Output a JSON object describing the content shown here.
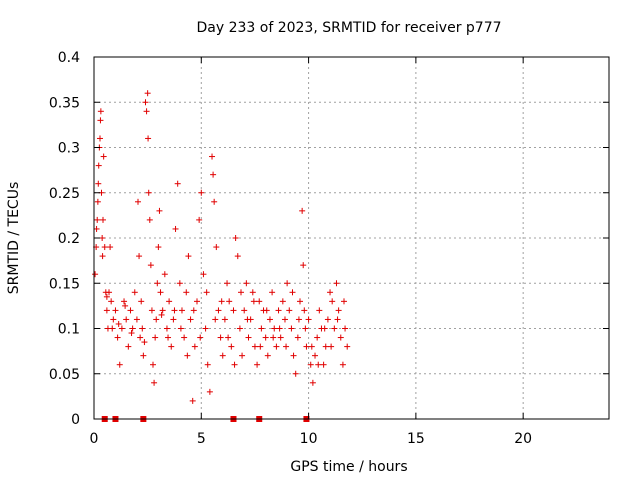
{
  "chart_data": {
    "type": "scatter",
    "title": "Day 233 of 2023, SRMTID for receiver p777",
    "xlabel": "GPS time / hours",
    "ylabel": "SRMTID / TECUs",
    "xlim": [
      0,
      24
    ],
    "ylim": [
      0,
      0.4
    ],
    "xticks": [
      0,
      5,
      10,
      15,
      20
    ],
    "yticks": [
      0,
      0.05,
      0.1,
      0.15,
      0.2,
      0.25,
      0.3,
      0.35,
      0.4
    ],
    "xtick_labels": [
      "0",
      "5",
      "10",
      "15",
      "20"
    ],
    "ytick_labels": [
      "0",
      "0.05",
      "0.1",
      "0.15",
      "0.2",
      "0.25",
      "0.3",
      "0.35",
      "0.4"
    ],
    "grid": true,
    "marker": "+",
    "color": "#e00000",
    "series": [
      {
        "name": "SRMTID",
        "points": [
          [
            0.05,
            0.16
          ],
          [
            0.1,
            0.19
          ],
          [
            0.12,
            0.21
          ],
          [
            0.15,
            0.22
          ],
          [
            0.18,
            0.24
          ],
          [
            0.2,
            0.26
          ],
          [
            0.22,
            0.28
          ],
          [
            0.25,
            0.3
          ],
          [
            0.28,
            0.31
          ],
          [
            0.3,
            0.33
          ],
          [
            0.32,
            0.34
          ],
          [
            0.35,
            0.25
          ],
          [
            0.38,
            0.2
          ],
          [
            0.4,
            0.18
          ],
          [
            0.42,
            0.22
          ],
          [
            0.45,
            0.29
          ],
          [
            0.5,
            0.19
          ],
          [
            0.55,
            0.14
          ],
          [
            0.6,
            0.12
          ],
          [
            0.65,
            0.1
          ],
          [
            0.7,
            0.14
          ],
          [
            0.75,
            0.19
          ],
          [
            0.8,
            0.13
          ],
          [
            0.85,
            0.1
          ],
          [
            0.9,
            0.11
          ],
          [
            1.0,
            0.12
          ],
          [
            1.1,
            0.09
          ],
          [
            1.2,
            0.06
          ],
          [
            1.3,
            0.1
          ],
          [
            1.4,
            0.13
          ],
          [
            1.5,
            0.11
          ],
          [
            1.6,
            0.08
          ],
          [
            1.7,
            0.12
          ],
          [
            1.8,
            0.1
          ],
          [
            1.9,
            0.14
          ],
          [
            2.0,
            0.11
          ],
          [
            2.05,
            0.24
          ],
          [
            2.1,
            0.18
          ],
          [
            2.15,
            0.09
          ],
          [
            2.2,
            0.13
          ],
          [
            2.25,
            0.1
          ],
          [
            2.3,
            0.07
          ],
          [
            2.4,
            0.35
          ],
          [
            2.45,
            0.34
          ],
          [
            2.5,
            0.36
          ],
          [
            2.52,
            0.31
          ],
          [
            2.55,
            0.25
          ],
          [
            2.6,
            0.22
          ],
          [
            2.65,
            0.17
          ],
          [
            2.7,
            0.12
          ],
          [
            2.75,
            0.06
          ],
          [
            2.8,
            0.04
          ],
          [
            2.85,
            0.09
          ],
          [
            2.9,
            0.11
          ],
          [
            2.95,
            0.15
          ],
          [
            3.0,
            0.19
          ],
          [
            3.05,
            0.23
          ],
          [
            3.1,
            0.14
          ],
          [
            3.2,
            0.12
          ],
          [
            3.3,
            0.16
          ],
          [
            3.4,
            0.1
          ],
          [
            3.5,
            0.13
          ],
          [
            3.6,
            0.08
          ],
          [
            3.7,
            0.11
          ],
          [
            3.8,
            0.21
          ],
          [
            3.9,
            0.26
          ],
          [
            4.0,
            0.15
          ],
          [
            4.1,
            0.12
          ],
          [
            4.2,
            0.09
          ],
          [
            4.3,
            0.14
          ],
          [
            4.4,
            0.18
          ],
          [
            4.5,
            0.11
          ],
          [
            4.6,
            0.02
          ],
          [
            4.7,
            0.08
          ],
          [
            4.8,
            0.13
          ],
          [
            4.9,
            0.22
          ],
          [
            5.0,
            0.25
          ],
          [
            5.1,
            0.16
          ],
          [
            5.2,
            0.1
          ],
          [
            5.3,
            0.06
          ],
          [
            5.4,
            0.03
          ],
          [
            5.5,
            0.29
          ],
          [
            5.55,
            0.27
          ],
          [
            5.6,
            0.24
          ],
          [
            5.7,
            0.19
          ],
          [
            5.8,
            0.12
          ],
          [
            5.9,
            0.09
          ],
          [
            6.0,
            0.07
          ],
          [
            6.1,
            0.11
          ],
          [
            6.2,
            0.15
          ],
          [
            6.3,
            0.13
          ],
          [
            6.4,
            0.08
          ],
          [
            6.5,
            0.12
          ],
          [
            6.6,
            0.2
          ],
          [
            6.7,
            0.18
          ],
          [
            6.8,
            0.1
          ],
          [
            6.9,
            0.07
          ],
          [
            7.0,
            0.12
          ],
          [
            7.1,
            0.15
          ],
          [
            7.2,
            0.09
          ],
          [
            7.3,
            0.11
          ],
          [
            7.4,
            0.14
          ],
          [
            7.5,
            0.08
          ],
          [
            7.6,
            0.06
          ],
          [
            7.7,
            0.13
          ],
          [
            7.8,
            0.1
          ],
          [
            7.9,
            0.12
          ],
          [
            8.0,
            0.09
          ],
          [
            8.1,
            0.07
          ],
          [
            8.2,
            0.11
          ],
          [
            8.3,
            0.14
          ],
          [
            8.4,
            0.1
          ],
          [
            8.5,
            0.08
          ],
          [
            8.6,
            0.12
          ],
          [
            8.7,
            0.09
          ],
          [
            8.8,
            0.13
          ],
          [
            8.9,
            0.11
          ],
          [
            9.0,
            0.15
          ],
          [
            9.1,
            0.12
          ],
          [
            9.2,
            0.1
          ],
          [
            9.3,
            0.07
          ],
          [
            9.4,
            0.05
          ],
          [
            9.5,
            0.09
          ],
          [
            9.6,
            0.13
          ],
          [
            9.7,
            0.23
          ],
          [
            9.75,
            0.17
          ],
          [
            9.8,
            0.12
          ],
          [
            9.9,
            0.08
          ],
          [
            10.0,
            0.11
          ],
          [
            10.1,
            0.06
          ],
          [
            10.2,
            0.04
          ],
          [
            10.3,
            0.07
          ],
          [
            10.4,
            0.09
          ],
          [
            10.5,
            0.12
          ],
          [
            10.6,
            0.1
          ],
          [
            10.7,
            0.06
          ],
          [
            10.8,
            0.08
          ],
          [
            10.9,
            0.11
          ],
          [
            11.0,
            0.14
          ],
          [
            11.1,
            0.13
          ],
          [
            11.2,
            0.1
          ],
          [
            11.3,
            0.15
          ],
          [
            11.4,
            0.12
          ],
          [
            11.5,
            0.09
          ],
          [
            11.6,
            0.06
          ],
          [
            11.7,
            0.1
          ],
          [
            11.8,
            0.08
          ],
          [
            0.6,
            0.135
          ],
          [
            1.15,
            0.105
          ],
          [
            1.45,
            0.125
          ],
          [
            1.75,
            0.095
          ],
          [
            2.35,
            0.085
          ],
          [
            3.15,
            0.115
          ],
          [
            3.45,
            0.09
          ],
          [
            3.75,
            0.12
          ],
          [
            4.05,
            0.1
          ],
          [
            4.35,
            0.07
          ],
          [
            4.65,
            0.12
          ],
          [
            4.95,
            0.09
          ],
          [
            5.25,
            0.14
          ],
          [
            5.65,
            0.11
          ],
          [
            5.95,
            0.13
          ],
          [
            6.25,
            0.09
          ],
          [
            6.55,
            0.06
          ],
          [
            6.85,
            0.14
          ],
          [
            7.15,
            0.11
          ],
          [
            7.45,
            0.13
          ],
          [
            7.75,
            0.08
          ],
          [
            8.05,
            0.12
          ],
          [
            8.35,
            0.09
          ],
          [
            8.65,
            0.1
          ],
          [
            8.95,
            0.08
          ],
          [
            9.25,
            0.14
          ],
          [
            9.55,
            0.11
          ],
          [
            9.85,
            0.1
          ],
          [
            10.15,
            0.08
          ],
          [
            10.45,
            0.06
          ],
          [
            10.75,
            0.1
          ],
          [
            11.05,
            0.08
          ],
          [
            11.35,
            0.11
          ],
          [
            11.65,
            0.13
          ]
        ]
      }
    ],
    "baseline_markers_x": [
      0.5,
      1.0,
      2.3,
      6.5,
      7.7,
      9.9
    ]
  }
}
